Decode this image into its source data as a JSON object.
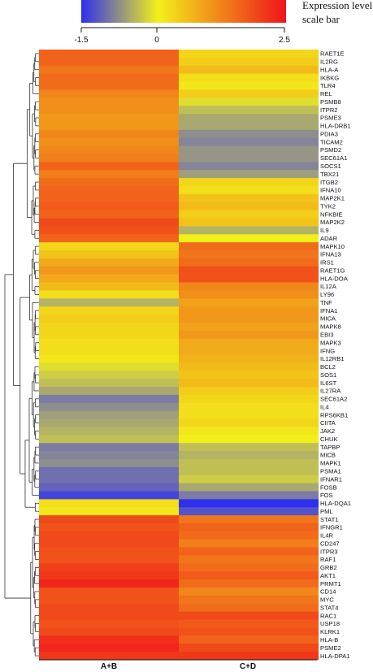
{
  "chart_data": {
    "type": "heatmap",
    "colorbar": {
      "label_line1": "Expression level",
      "label_line2": "scale bar",
      "min": -1.5,
      "mid": 0,
      "max": 2.5,
      "tick_labels": [
        "-1.5",
        "0",
        "2.5"
      ],
      "colors": [
        "#2f2ff0",
        "#f2f01a",
        "#f0141a"
      ]
    },
    "columns": [
      "A+B",
      "C+D"
    ],
    "rows": [
      {
        "gene": "RAET1E",
        "values": [
          1.6,
          0.3
        ]
      },
      {
        "gene": "IL2RG",
        "values": [
          1.6,
          0.4
        ]
      },
      {
        "gene": "HLA-A",
        "values": [
          1.4,
          0.6
        ]
      },
      {
        "gene": "IKBKG",
        "values": [
          1.5,
          0.2
        ]
      },
      {
        "gene": "TLR4",
        "values": [
          1.5,
          0.1
        ]
      },
      {
        "gene": "REL",
        "values": [
          1.2,
          0.4
        ]
      },
      {
        "gene": "PSMB8",
        "values": [
          1.1,
          -0.1
        ]
      },
      {
        "gene": "ITPR2",
        "values": [
          1.1,
          -0.3
        ]
      },
      {
        "gene": "PSME3",
        "values": [
          1.0,
          -0.5
        ]
      },
      {
        "gene": "HLA-DRB1",
        "values": [
          1.0,
          -0.5
        ]
      },
      {
        "gene": "PDIA3",
        "values": [
          1.2,
          -0.8
        ]
      },
      {
        "gene": "TICAM2",
        "values": [
          1.1,
          -0.9
        ]
      },
      {
        "gene": "PSMD2",
        "values": [
          1.2,
          -0.7
        ]
      },
      {
        "gene": "SEC61A1",
        "values": [
          1.3,
          -0.7
        ]
      },
      {
        "gene": "SOCS1",
        "values": [
          1.6,
          -0.9
        ]
      },
      {
        "gene": "TBX21",
        "values": [
          1.3,
          -0.6
        ]
      },
      {
        "gene": "ITGB2",
        "values": [
          1.5,
          0.3
        ]
      },
      {
        "gene": "IFNA10",
        "values": [
          1.6,
          0.2
        ]
      },
      {
        "gene": "MAP2K1",
        "values": [
          1.6,
          0.5
        ]
      },
      {
        "gene": "TYK2",
        "values": [
          1.7,
          0.6
        ]
      },
      {
        "gene": "NFKBIE",
        "values": [
          1.6,
          0.4
        ]
      },
      {
        "gene": "MAP2K2",
        "values": [
          1.9,
          0.5
        ]
      },
      {
        "gene": "IL9",
        "values": [
          1.8,
          -0.4
        ]
      },
      {
        "gene": "ADAR",
        "values": [
          1.6,
          0.0
        ]
      },
      {
        "gene": "MAPK10",
        "values": [
          0.3,
          1.5
        ]
      },
      {
        "gene": "IFNA13",
        "values": [
          0.5,
          1.4
        ]
      },
      {
        "gene": "IRS1",
        "values": [
          0.8,
          1.5
        ]
      },
      {
        "gene": "RAET1G",
        "values": [
          1.0,
          1.8
        ]
      },
      {
        "gene": "HLA-DOA",
        "values": [
          0.8,
          1.8
        ]
      },
      {
        "gene": "IL12A",
        "values": [
          0.6,
          1.2
        ]
      },
      {
        "gene": "LY96",
        "values": [
          0.2,
          1.1
        ]
      },
      {
        "gene": "TNF",
        "values": [
          -0.4,
          0.9
        ]
      },
      {
        "gene": "IFNA1",
        "values": [
          0.3,
          1.0
        ]
      },
      {
        "gene": "MICA",
        "values": [
          0.4,
          1.0
        ]
      },
      {
        "gene": "MAPK8",
        "values": [
          0.3,
          0.9
        ]
      },
      {
        "gene": "EBI3",
        "values": [
          0.3,
          1.0
        ]
      },
      {
        "gene": "MAPK3",
        "values": [
          0.2,
          0.8
        ]
      },
      {
        "gene": "IFNG",
        "values": [
          0.2,
          0.8
        ]
      },
      {
        "gene": "IL12RB1",
        "values": [
          0.1,
          0.7
        ]
      },
      {
        "gene": "BCL2",
        "values": [
          -0.1,
          0.6
        ]
      },
      {
        "gene": "SOS1",
        "values": [
          -0.2,
          0.5
        ]
      },
      {
        "gene": "IL6ST",
        "values": [
          -0.3,
          0.6
        ]
      },
      {
        "gene": "IL27RA",
        "values": [
          -0.5,
          0.4
        ]
      },
      {
        "gene": "SEC61A2",
        "values": [
          -1.0,
          0.3
        ]
      },
      {
        "gene": "IL4",
        "values": [
          -0.8,
          0.2
        ]
      },
      {
        "gene": "RPS6KB1",
        "values": [
          -0.6,
          0.2
        ]
      },
      {
        "gene": "CIITA",
        "values": [
          -0.5,
          0.3
        ]
      },
      {
        "gene": "JAK2",
        "values": [
          -0.4,
          0.1
        ]
      },
      {
        "gene": "CHUK",
        "values": [
          -0.3,
          0.0
        ]
      },
      {
        "gene": "TAPBP",
        "values": [
          -1.0,
          -0.3
        ]
      },
      {
        "gene": "MICB",
        "values": [
          -0.9,
          -0.4
        ]
      },
      {
        "gene": "MAPK1",
        "values": [
          -0.8,
          -0.3
        ]
      },
      {
        "gene": "PSMA1",
        "values": [
          -1.1,
          -0.3
        ]
      },
      {
        "gene": "IFNAR1",
        "values": [
          -1.1,
          -0.2
        ]
      },
      {
        "gene": "FOSB",
        "values": [
          -1.2,
          -0.5
        ]
      },
      {
        "gene": "FOS",
        "values": [
          -1.4,
          -1.0
        ]
      },
      {
        "gene": "HLA-DQA1",
        "values": [
          0.2,
          -1.5
        ]
      },
      {
        "gene": "PML",
        "values": [
          0.1,
          -1.3
        ]
      },
      {
        "gene": "STAT1",
        "values": [
          1.9,
          1.4
        ]
      },
      {
        "gene": "IFNGR1",
        "values": [
          1.8,
          1.6
        ]
      },
      {
        "gene": "IL4R",
        "values": [
          1.9,
          1.5
        ]
      },
      {
        "gene": "CD247",
        "values": [
          1.9,
          1.3
        ]
      },
      {
        "gene": "ITPR3",
        "values": [
          1.8,
          1.6
        ]
      },
      {
        "gene": "RAF1",
        "values": [
          1.8,
          1.4
        ]
      },
      {
        "gene": "GRB2",
        "values": [
          2.0,
          1.5
        ]
      },
      {
        "gene": "AKT1",
        "values": [
          2.1,
          1.7
        ]
      },
      {
        "gene": "PRMT1",
        "values": [
          2.3,
          1.5
        ]
      },
      {
        "gene": "CD14",
        "values": [
          1.8,
          1.2
        ]
      },
      {
        "gene": "MYC",
        "values": [
          1.8,
          1.4
        ]
      },
      {
        "gene": "STAT4",
        "values": [
          1.9,
          1.5
        ]
      },
      {
        "gene": "RAC1",
        "values": [
          1.9,
          1.9
        ]
      },
      {
        "gene": "USP18",
        "values": [
          1.8,
          1.7
        ]
      },
      {
        "gene": "KLRK1",
        "values": [
          1.9,
          1.8
        ]
      },
      {
        "gene": "HLA-B",
        "values": [
          2.2,
          1.6
        ]
      },
      {
        "gene": "PSME2",
        "values": [
          2.3,
          1.9
        ]
      },
      {
        "gene": "HLA-DPA1",
        "values": [
          2.1,
          2.1
        ]
      }
    ]
  }
}
